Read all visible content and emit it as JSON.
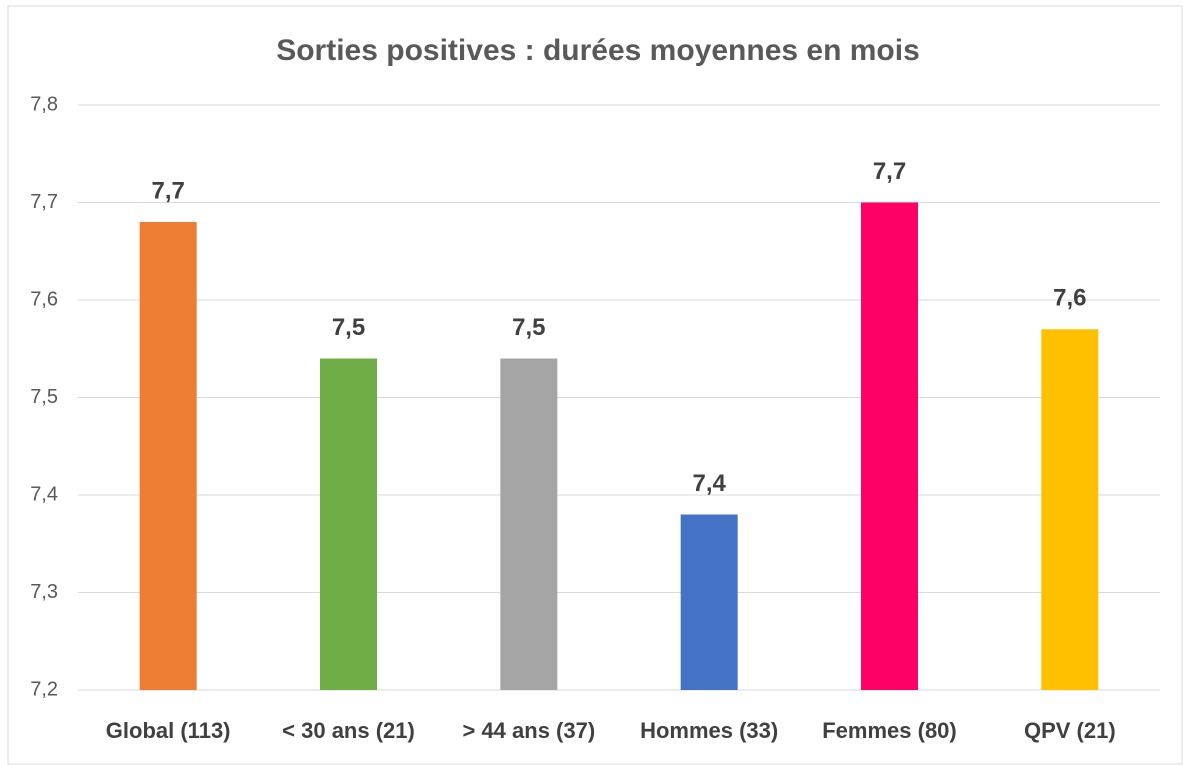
{
  "chart_data": {
    "type": "bar",
    "title": "Sorties positives : durées moyennes en mois",
    "categories": [
      "Global (113)",
      "< 30 ans (21)",
      "> 44 ans (37)",
      "Hommes (33)",
      "Femmes (80)",
      "QPV (21)"
    ],
    "values": [
      7.68,
      7.54,
      7.54,
      7.38,
      7.7,
      7.57
    ],
    "value_labels": [
      "7,7",
      "7,5",
      "7,5",
      "7,4",
      "7,7",
      "7,6"
    ],
    "colors": [
      "#ed7d31",
      "#70ad47",
      "#a5a5a5",
      "#4472c4",
      "#ff0066",
      "#ffc000"
    ],
    "ylim": [
      7.2,
      7.8
    ],
    "yticks": [
      {
        "value": 7.2,
        "label": "7,2"
      },
      {
        "value": 7.3,
        "label": "7,3"
      },
      {
        "value": 7.4,
        "label": "7,4"
      },
      {
        "value": 7.5,
        "label": "7,5"
      },
      {
        "value": 7.6,
        "label": "7,6"
      },
      {
        "value": 7.7,
        "label": "7,7"
      },
      {
        "value": 7.8,
        "label": "7,8"
      }
    ],
    "grid": true
  }
}
